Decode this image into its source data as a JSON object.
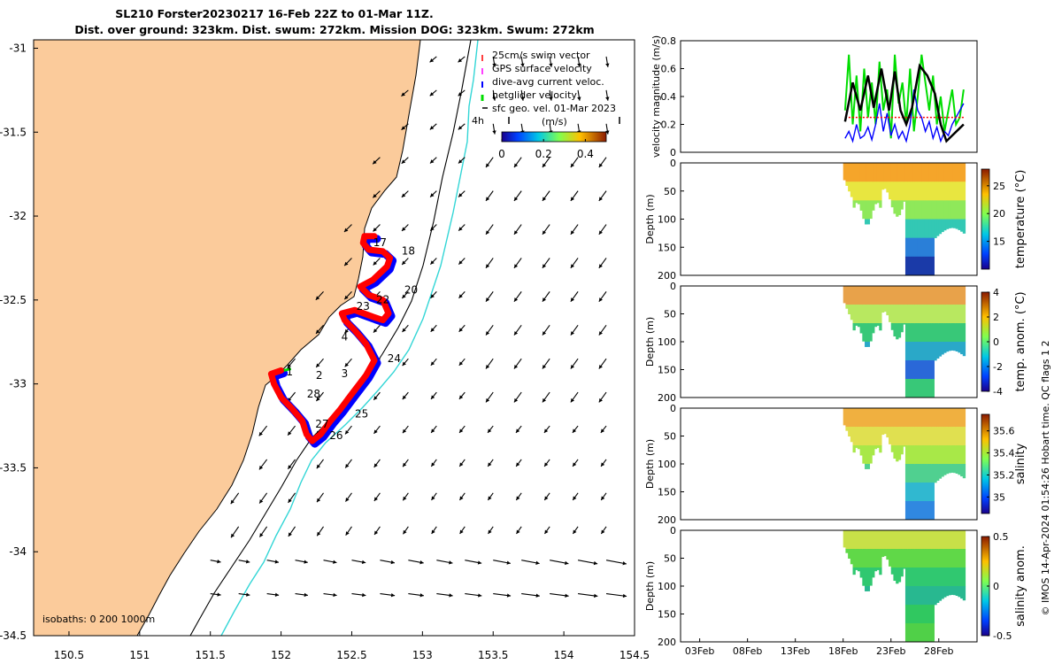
{
  "title_line1": "SL210 Forster20230217 16-Feb 22Z to 01-Mar 11Z.",
  "title_line2": "Dist. over ground: 323km. Dist. swum: 272km. Mission DOG: 323km. Swum: 272km",
  "credit": "© IMOS 14-Apr-2024 01:54:26 Hobart time. QC flags 1  2",
  "colors": {
    "land": "#fbcb9b",
    "track_red": "#ff0000",
    "track_blue": "#0000ff",
    "isobath_200": "#000000",
    "isobath_1000": "#33d6d6",
    "green": "#00dd00"
  },
  "chart_data": [
    {
      "type": "map",
      "xlim": [
        150.25,
        154.5
      ],
      "ylim": [
        -34.5,
        -30.95
      ],
      "x_ticks": [
        150.5,
        151,
        151.5,
        152,
        152.5,
        153,
        153.5,
        154,
        154.5
      ],
      "x_tick_labels": [
        "150.5",
        "151",
        "151.5",
        "152",
        "152.5",
        "153",
        "153.5",
        "154",
        "154.5"
      ],
      "y_ticks": [
        -31,
        -31.5,
        -32,
        -32.5,
        -33,
        -33.5,
        -34,
        -34.5
      ],
      "y_tick_labels": [
        "-31",
        "-31.5",
        "-32",
        "-32.5",
        "-33",
        "-33.5",
        "-34",
        "-34.5"
      ],
      "legend": [
        {
          "label": "25cm/s swim vector",
          "color": "#ff0000"
        },
        {
          "label": "GPS surface velocity",
          "color": "#ff00ff"
        },
        {
          "label": "dive-avg current veloc.",
          "color": "#0000ff"
        },
        {
          "label": "netglider velocity",
          "color": "#00dd00"
        },
        {
          "label": "sfc geo. vel. 01-Mar 2023",
          "color": "#000000"
        }
      ],
      "legend_placement": "top-right",
      "colorbar": {
        "label": "(m/s)",
        "ticks": [
          0,
          0.2,
          0.4
        ],
        "tick_labels": [
          "0",
          "0.2",
          "0.4"
        ],
        "range": [
          0,
          0.5
        ]
      },
      "arrow_annotation": "4h",
      "isobaths_label": "isobaths: 0   200  1000m",
      "day_labels": [
        {
          "text": "17",
          "lon": 152.7,
          "lat": -32.18
        },
        {
          "text": "18",
          "lon": 152.9,
          "lat": -32.23
        },
        {
          "text": "20",
          "lon": 152.92,
          "lat": -32.46
        },
        {
          "text": "22",
          "lon": 152.72,
          "lat": -32.52
        },
        {
          "text": "23",
          "lon": 152.58,
          "lat": -32.56
        },
        {
          "text": "4",
          "lon": 152.45,
          "lat": -32.74
        },
        {
          "text": "24",
          "lon": 152.8,
          "lat": -32.87
        },
        {
          "text": "1",
          "lon": 152.06,
          "lat": -32.95
        },
        {
          "text": "2",
          "lon": 152.27,
          "lat": -32.97
        },
        {
          "text": "3",
          "lon": 152.45,
          "lat": -32.96
        },
        {
          "text": "28",
          "lon": 152.23,
          "lat": -33.08
        },
        {
          "text": "25",
          "lon": 152.57,
          "lat": -33.2
        },
        {
          "text": "27",
          "lon": 152.29,
          "lat": -33.26
        },
        {
          "text": "26",
          "lon": 152.39,
          "lat": -33.33
        }
      ],
      "track": {
        "lon": [
          152.0,
          151.93,
          151.95,
          152.0,
          152.08,
          152.15,
          152.18,
          152.22,
          152.28,
          152.35,
          152.42,
          152.5,
          152.6,
          152.66,
          152.6,
          152.52,
          152.45,
          152.43,
          152.52,
          152.65,
          152.72,
          152.76,
          152.72,
          152.62,
          152.56,
          152.65,
          152.75,
          152.77,
          152.72,
          152.62,
          152.58,
          152.59,
          152.66
        ],
        "lat": [
          -32.92,
          -32.94,
          -33.0,
          -33.08,
          -33.15,
          -33.22,
          -33.3,
          -33.34,
          -33.3,
          -33.22,
          -33.15,
          -33.06,
          -32.95,
          -32.86,
          -32.76,
          -32.68,
          -32.62,
          -32.58,
          -32.56,
          -32.6,
          -32.62,
          -32.58,
          -32.5,
          -32.47,
          -32.42,
          -32.38,
          -32.3,
          -32.25,
          -32.21,
          -32.2,
          -32.16,
          -32.12,
          -32.12
        ]
      }
    },
    {
      "type": "line",
      "ylabel": "velocity magnitude (m/s)",
      "ylim": [
        0,
        0.8
      ],
      "y_ticks": [
        0,
        0.2,
        0.4,
        0.6,
        0.8
      ],
      "y_tick_labels": [
        "0",
        "0.2",
        "0.4",
        "0.6",
        "0.8"
      ],
      "xlim": [
        0,
        31
      ],
      "series": [
        {
          "color": "#00dd00",
          "x": [
            17.2,
            17.6,
            18.0,
            18.4,
            18.8,
            19.2,
            19.6,
            20.0,
            20.4,
            20.8,
            21.2,
            21.6,
            22.0,
            22.4,
            22.8,
            23.2,
            23.6,
            24.0,
            24.4,
            24.8,
            25.2,
            25.6,
            26.0,
            26.4,
            26.8,
            27.2,
            27.6,
            28.0,
            28.4,
            28.8,
            29.2,
            29.6
          ],
          "values": [
            0.3,
            0.7,
            0.2,
            0.55,
            0.15,
            0.6,
            0.25,
            0.5,
            0.2,
            0.65,
            0.3,
            0.45,
            0.1,
            0.7,
            0.35,
            0.5,
            0.2,
            0.6,
            0.15,
            0.4,
            0.7,
            0.5,
            0.3,
            0.55,
            0.2,
            0.4,
            0.15,
            0.3,
            0.45,
            0.2,
            0.25,
            0.45
          ]
        },
        {
          "color": "#0000ff",
          "x": [
            17.2,
            17.6,
            18.0,
            18.4,
            18.8,
            19.2,
            19.6,
            20.0,
            20.4,
            20.8,
            21.2,
            21.6,
            22.0,
            22.4,
            22.8,
            23.2,
            23.6,
            24.0,
            24.4,
            24.8,
            25.2,
            25.6,
            26.0,
            26.4,
            26.8,
            27.2,
            27.6,
            28.0,
            28.4,
            28.8,
            29.2,
            29.6
          ],
          "values": [
            0.1,
            0.15,
            0.08,
            0.2,
            0.1,
            0.12,
            0.18,
            0.09,
            0.2,
            0.35,
            0.15,
            0.28,
            0.12,
            0.2,
            0.1,
            0.15,
            0.08,
            0.2,
            0.45,
            0.3,
            0.25,
            0.15,
            0.22,
            0.1,
            0.18,
            0.08,
            0.15,
            0.12,
            0.2,
            0.25,
            0.3,
            0.35
          ]
        },
        {
          "color": "#ff0000",
          "x": [
            17.2,
            29.6
          ],
          "values": [
            0.25,
            0.25
          ]
        },
        {
          "color": "#000000",
          "x": [
            17.2,
            18.0,
            18.8,
            19.6,
            20.2,
            21.0,
            21.8,
            22.4,
            23.0,
            23.6,
            24.2,
            25.0,
            25.8,
            26.6,
            27.2,
            27.8,
            28.4,
            29.0,
            29.6
          ],
          "values": [
            0.22,
            0.5,
            0.3,
            0.55,
            0.32,
            0.6,
            0.3,
            0.58,
            0.3,
            0.2,
            0.32,
            0.62,
            0.55,
            0.42,
            0.2,
            0.08,
            0.12,
            0.16,
            0.2
          ]
        }
      ]
    },
    {
      "type": "heatmap",
      "variable": "temperature",
      "ylabel": "Depth (m)",
      "colorbar_label": "temperature (°C)",
      "ylim": [
        0,
        200
      ],
      "y_ticks": [
        0,
        50,
        100,
        150,
        200
      ],
      "colorbar_ticks": [
        15,
        20,
        25
      ],
      "range": [
        10,
        28
      ],
      "x_ticks": [
        2,
        7,
        12,
        17,
        22,
        27
      ],
      "x_tick_labels": [
        "03Feb",
        "08Feb",
        "13Feb",
        "18Feb",
        "23Feb",
        "28Feb"
      ]
    },
    {
      "type": "heatmap",
      "variable": "temp. anom.",
      "ylabel": "Depth (m)",
      "colorbar_label": "temp. anom. (°C)",
      "ylim": [
        0,
        200
      ],
      "y_ticks": [
        0,
        50,
        100,
        150,
        200
      ],
      "colorbar_ticks": [
        -4,
        -2,
        0,
        2,
        4
      ],
      "range": [
        -4,
        4
      ]
    },
    {
      "type": "heatmap",
      "variable": "salinity",
      "ylabel": "Depth (m)",
      "colorbar_label": "salinity",
      "ylim": [
        0,
        200
      ],
      "y_ticks": [
        0,
        50,
        100,
        150,
        200
      ],
      "colorbar_ticks": [
        35,
        35.2,
        35.4,
        35.6
      ],
      "range": [
        34.85,
        35.75
      ]
    },
    {
      "type": "heatmap",
      "variable": "salinity anom.",
      "ylabel": "Depth (m)",
      "colorbar_label": "salinity anom.",
      "ylim": [
        0,
        200
      ],
      "y_ticks": [
        0,
        50,
        100,
        150,
        200
      ],
      "colorbar_ticks": [
        -0.5,
        0,
        0.5
      ],
      "range": [
        -0.5,
        0.5
      ]
    }
  ]
}
